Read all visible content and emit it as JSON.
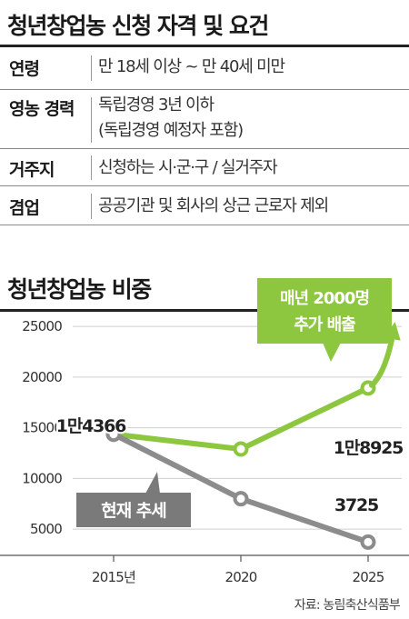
{
  "conditions": {
    "title": "청년창업농 신청 자격 및 요건",
    "rows": [
      {
        "label": "연령",
        "lines": [
          "만 18세 이상 ~ 만 40세 미만"
        ]
      },
      {
        "label": "영농 경력",
        "lines": [
          "독립경영 3년 이하",
          "(독립경영 예정자 포함)"
        ]
      },
      {
        "label": "거주지",
        "lines": [
          "신청하는 시·군·구 / 실거주자"
        ]
      },
      {
        "label": "겸업",
        "lines": [
          "공공기관 및 회사의 상근 근로자 제외"
        ]
      }
    ]
  },
  "chart_title": "청년창업농 비중",
  "source": "자료: 농림축산식품부",
  "colors": {
    "green": "#8dc63f",
    "gray": "#8c8c8c",
    "dark_gray": "#7a7a7a",
    "grid": "#cfcfcf"
  },
  "chart_data": {
    "type": "line",
    "x": [
      "2015년",
      "2020",
      "2025"
    ],
    "ylim": [
      2500,
      26000
    ],
    "yticks": [
      5000,
      10000,
      15000,
      20000,
      25000
    ],
    "grid": true,
    "series": [
      {
        "name": "매년 2000명 추가 배출",
        "color_key": "green",
        "values": [
          14366,
          12900,
          18925
        ]
      },
      {
        "name": "현재 추세",
        "color_key": "gray",
        "values": [
          14366,
          8000,
          3725
        ]
      }
    ],
    "data_labels": [
      {
        "series": 0,
        "point": 0,
        "text": "1만4366"
      },
      {
        "series": 0,
        "point": 2,
        "text": "1만8925"
      },
      {
        "series": 1,
        "point": 2,
        "text": "3725"
      }
    ],
    "annotations": {
      "green_callout": [
        "매년 2000명",
        "추가 배출"
      ],
      "gray_callout": "현재 추세"
    }
  }
}
